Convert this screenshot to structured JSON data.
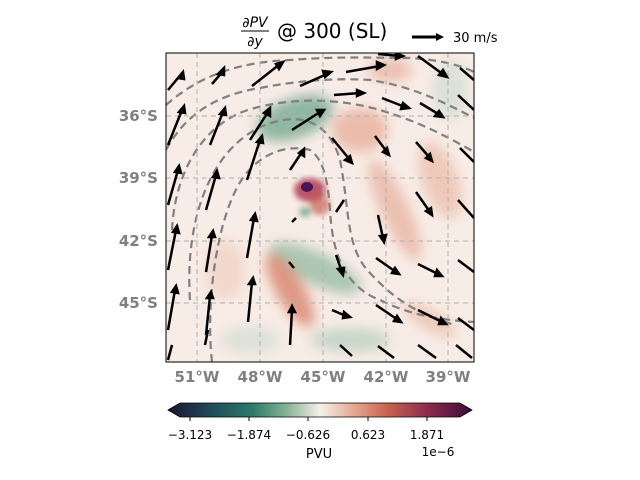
{
  "title": {
    "numerator": "∂PV",
    "denominator": "∂y",
    "suffix": "@ 300 (SL)"
  },
  "quiver_key": {
    "label": "30 m/s",
    "speed_ms": 30
  },
  "map": {
    "lon_range": [
      -52,
      -38
    ],
    "lat_range": [
      -48,
      -33.5
    ],
    "lon_ticks": [
      {
        "value": -51,
        "label": "51°W"
      },
      {
        "value": -48,
        "label": "48°W"
      },
      {
        "value": -45,
        "label": "45°W"
      },
      {
        "value": -42,
        "label": "42°W"
      },
      {
        "value": -39,
        "label": "39°W"
      }
    ],
    "lat_ticks": [
      {
        "value": -36,
        "label": "36°S"
      },
      {
        "value": -39,
        "label": "39°S"
      },
      {
        "value": -42,
        "label": "42°S"
      },
      {
        "value": -45,
        "label": "45°S"
      }
    ],
    "gridlines": true,
    "contour_style": "dashed gray"
  },
  "colorbar": {
    "label": "PVU",
    "exponent": "1e−6",
    "ticks": [
      "−3.123",
      "−1.874",
      "−0.626",
      "0.623",
      "1.871"
    ],
    "colors": [
      "#1a1433",
      "#1f4a5a",
      "#2e7b6a",
      "#8fb89a",
      "#f6f1ea",
      "#e6b09a",
      "#c9634f",
      "#8a2a4d",
      "#3a0a3a"
    ]
  }
}
